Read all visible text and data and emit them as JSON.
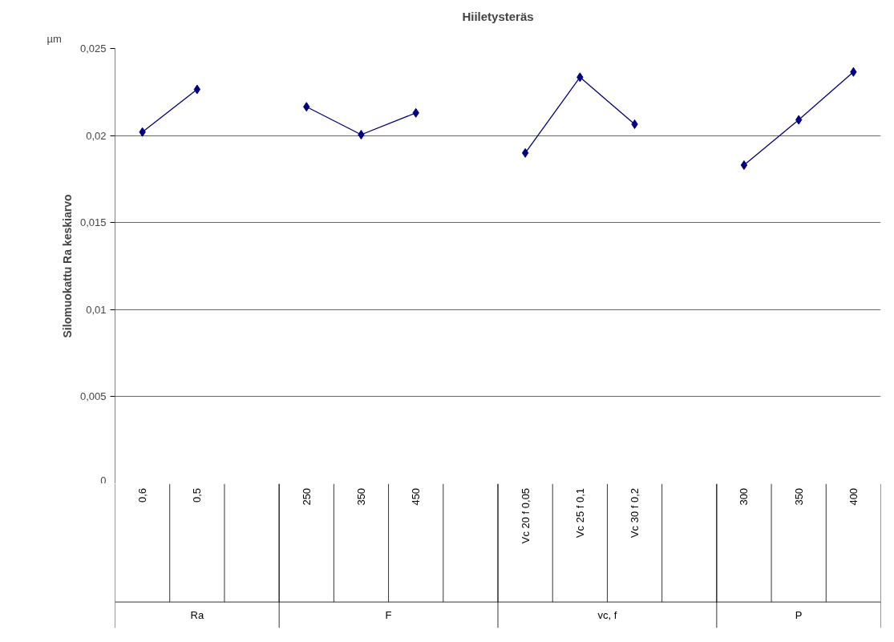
{
  "chart_data": {
    "type": "line",
    "title": "Hiiletysteräs",
    "ylabel": "Silomuokattu Ra keskiarvo",
    "annotations": [
      "µm",
      "Ra",
      "F",
      "vc, f",
      "P"
    ],
    "categories": [
      "0,6",
      "0,5",
      null,
      "250",
      "350",
      "450",
      null,
      "Vc 20 f 0,05",
      "Vc 25 f 0,1",
      "Vc 30 f 0,2",
      null,
      "300",
      "350",
      "400"
    ],
    "series": [
      {
        "color": "#000080",
        "values": [
          0.0202,
          0.02265,
          null,
          0.02165,
          0.02005,
          0.0213,
          null,
          0.019,
          0.02335,
          0.02065,
          null,
          0.0183,
          0.0209,
          0.02365
        ]
      }
    ],
    "ylim": [
      0,
      0.025
    ],
    "yticks": [
      0,
      {
        "value": 0.005,
        "label": "0,005"
      },
      {
        "value": 0.01,
        "label": "0,01"
      },
      {
        "value": 0.015,
        "label": "0,015"
      },
      {
        "value": 0.02,
        "label": "0,02"
      },
      {
        "value": 0.025,
        "label": "0,025"
      }
    ],
    "grid": "y",
    "marker": "diamond",
    "line_style": "solid"
  }
}
